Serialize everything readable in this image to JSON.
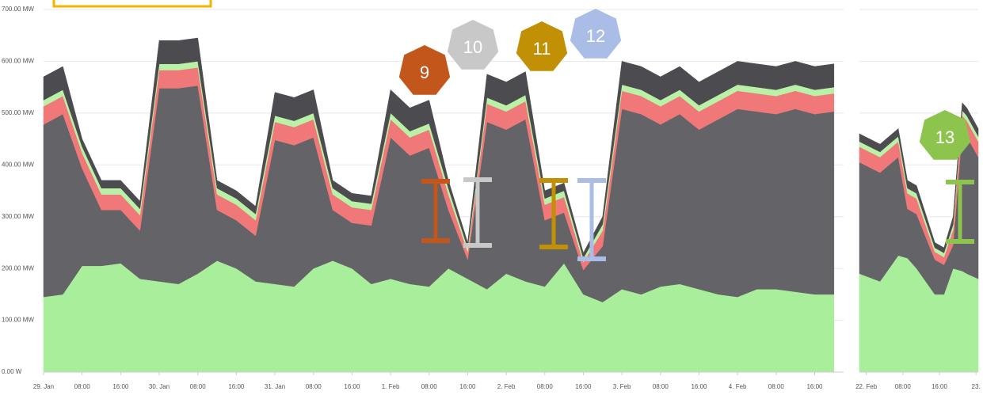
{
  "chart_data": [
    {
      "type": "stacked_area",
      "xlim": [
        0,
        166
      ],
      "xticks": [
        {
          "value": 0,
          "label": "29. Jan"
        },
        {
          "value": 8,
          "label": "08:00"
        },
        {
          "value": 16,
          "label": "16:00"
        },
        {
          "value": 24,
          "label": "30. Jan"
        },
        {
          "value": 32,
          "label": "08:00"
        },
        {
          "value": 40,
          "label": "16:00"
        },
        {
          "value": 48,
          "label": "31. Jan"
        },
        {
          "value": 56,
          "label": "08:00"
        },
        {
          "value": 64,
          "label": "16:00"
        },
        {
          "value": 72,
          "label": "1. Feb"
        },
        {
          "value": 80,
          "label": "08:00"
        },
        {
          "value": 88,
          "label": "16:00"
        },
        {
          "value": 96,
          "label": "2. Feb"
        },
        {
          "value": 104,
          "label": "08:00"
        },
        {
          "value": 112,
          "label": "16:00"
        },
        {
          "value": 120,
          "label": "3. Feb"
        },
        {
          "value": 128,
          "label": "08:00"
        },
        {
          "value": 136,
          "label": "16:00"
        },
        {
          "value": 144,
          "label": "4. Feb"
        },
        {
          "value": 152,
          "label": "08:00"
        },
        {
          "value": 160,
          "label": "16:00"
        }
      ],
      "ylim": [
        0,
        700
      ],
      "yticks": [
        {
          "value": 0,
          "label": "0.00 W"
        },
        {
          "value": 100,
          "label": "100.00 MW"
        },
        {
          "value": 200,
          "label": "200.00 MW"
        },
        {
          "value": 300,
          "label": "300.00 MW"
        },
        {
          "value": 400,
          "label": "400.00 MW"
        },
        {
          "value": 500,
          "label": "500.00 MW"
        },
        {
          "value": 600,
          "label": "600.00 MW"
        },
        {
          "value": 700,
          "label": "700.00 MW"
        }
      ],
      "show_ytick_labels": true,
      "grid": true,
      "x": [
        0,
        4,
        8,
        12,
        16,
        20,
        24,
        28,
        32,
        36,
        40,
        44,
        48,
        52,
        56,
        60,
        64,
        68,
        72,
        76,
        80,
        84,
        88,
        92,
        96,
        100,
        104,
        108,
        112,
        116,
        120,
        124,
        128,
        132,
        136,
        140,
        144,
        148,
        152,
        156,
        160,
        164
      ],
      "series": [
        {
          "color": "#a9ee9a",
          "values": [
            145,
            150,
            205,
            205,
            210,
            180,
            175,
            170,
            190,
            215,
            200,
            175,
            170,
            165,
            200,
            215,
            200,
            170,
            180,
            170,
            165,
            200,
            180,
            160,
            190,
            175,
            165,
            210,
            150,
            135,
            160,
            150,
            165,
            170,
            160,
            150,
            145,
            160,
            160,
            155,
            150,
            150
          ]
        },
        {
          "color": "#636368",
          "values": [
            333,
            348,
            188,
            108,
            103,
            93,
            373,
            378,
            363,
            98,
            93,
            88,
            278,
            273,
            253,
            98,
            88,
            113,
            273,
            248,
            268,
            113,
            37,
            323,
            278,
            313,
            128,
            98,
            47,
            108,
            348,
            348,
            313,
            328,
            308,
            338,
            363,
            343,
            338,
            353,
            348,
            353
          ]
        },
        {
          "color": "#f07878",
          "values": [
            35,
            35,
            30,
            30,
            30,
            30,
            35,
            35,
            35,
            30,
            30,
            30,
            35,
            35,
            35,
            30,
            30,
            30,
            35,
            35,
            35,
            30,
            15,
            35,
            35,
            35,
            30,
            30,
            15,
            30,
            35,
            35,
            35,
            35,
            35,
            35,
            35,
            35,
            35,
            35,
            35,
            35
          ]
        },
        {
          "color": "#b9f2a6",
          "values": [
            12,
            12,
            12,
            12,
            12,
            12,
            12,
            12,
            12,
            12,
            12,
            12,
            12,
            12,
            12,
            12,
            12,
            12,
            12,
            12,
            12,
            12,
            8,
            12,
            12,
            12,
            12,
            12,
            8,
            12,
            12,
            12,
            12,
            12,
            12,
            12,
            12,
            12,
            12,
            12,
            12,
            12
          ]
        },
        {
          "color": "#4c4c50",
          "values": [
            45,
            45,
            15,
            15,
            15,
            15,
            45,
            45,
            45,
            15,
            15,
            15,
            45,
            45,
            45,
            15,
            15,
            15,
            45,
            45,
            45,
            15,
            10,
            45,
            45,
            45,
            15,
            15,
            10,
            15,
            45,
            45,
            45,
            45,
            45,
            45,
            45,
            45,
            45,
            45,
            45,
            45
          ]
        }
      ]
    },
    {
      "type": "stacked_area",
      "xlim": [
        -1.5,
        24.5
      ],
      "xticks": [
        {
          "value": 0,
          "label": "22. Feb"
        },
        {
          "value": 8,
          "label": "08:00"
        },
        {
          "value": 16,
          "label": "16:00"
        },
        {
          "value": 24,
          "label": "23."
        }
      ],
      "ylim": [
        0,
        700
      ],
      "yticks": [
        0,
        100,
        200,
        300,
        400,
        500,
        600,
        700
      ],
      "show_ytick_labels": false,
      "grid": true,
      "x": [
        -1.5,
        3,
        7,
        9,
        11,
        15,
        17,
        19,
        21,
        22,
        24.5
      ],
      "series": [
        {
          "color": "#a9ee9a",
          "values": [
            190,
            175,
            225,
            220,
            200,
            150,
            150,
            200,
            195,
            190,
            180
          ]
        },
        {
          "color": "#636368",
          "values": [
            215,
            210,
            190,
            95,
            105,
            67,
            57,
            45,
            270,
            265,
            235
          ]
        },
        {
          "color": "#f07878",
          "values": [
            30,
            30,
            30,
            30,
            30,
            15,
            15,
            30,
            30,
            30,
            30
          ]
        },
        {
          "color": "#b9f2a6",
          "values": [
            10,
            10,
            10,
            10,
            10,
            8,
            8,
            10,
            10,
            10,
            10
          ]
        },
        {
          "color": "#4c4c50",
          "values": [
            15,
            15,
            15,
            15,
            15,
            10,
            10,
            15,
            15,
            15,
            15
          ]
        }
      ]
    }
  ],
  "annotations": [
    {
      "label": "9",
      "color": "#c3561a"
    },
    {
      "label": "10",
      "color": "#c8c8c8"
    },
    {
      "label": "11",
      "color": "#c19004"
    },
    {
      "label": "12",
      "color": "#a9bde6"
    },
    {
      "label": "13",
      "color": "#8dc44e"
    }
  ]
}
